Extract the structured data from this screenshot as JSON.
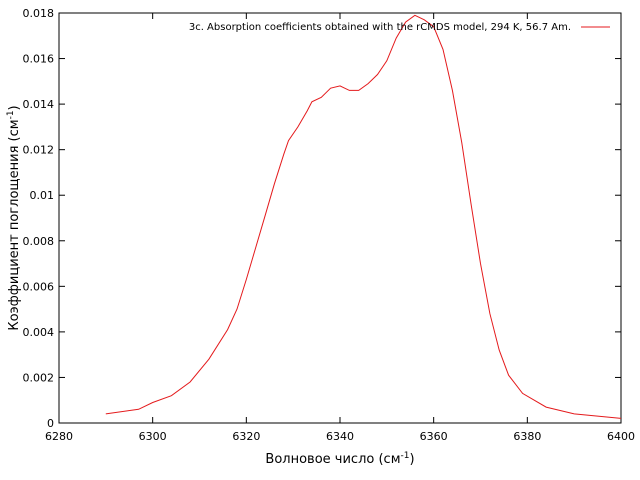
{
  "chart_data": {
    "type": "line",
    "title": "",
    "xlabel": {
      "main": "Волновое число (см",
      "sup": "-1",
      "end": ")"
    },
    "ylabel": {
      "main": "Коэффициент поглощения (см",
      "sup": "-1",
      "end": ")"
    },
    "xlim": [
      6280,
      6400
    ],
    "ylim": [
      0,
      0.018
    ],
    "x_ticks": [
      6280,
      6300,
      6320,
      6340,
      6360,
      6380,
      6400
    ],
    "x_tick_labels": [
      "6280",
      "6300",
      "6320",
      "6340",
      "6360",
      "6380",
      "6400"
    ],
    "y_ticks": [
      0,
      0.002,
      0.004,
      0.006,
      0.008,
      0.01,
      0.012,
      0.014,
      0.016,
      0.018
    ],
    "y_tick_labels": [
      "0",
      "0.002",
      "0.004",
      "0.006",
      "0.008",
      "0.01",
      "0.012",
      "0.014",
      "0.016",
      "0.018"
    ],
    "grid": false,
    "legend_position": "top-right",
    "series": [
      {
        "name": "3c. Absorption coefficients obtained with the rCMDS model, 294 K, 56.7 Am.",
        "color": "#e41a1c",
        "x": [
          6290,
          6297,
          6300,
          6304,
          6308,
          6312,
          6316,
          6318,
          6320,
          6322,
          6324,
          6326,
          6328,
          6329,
          6331,
          6333,
          6334,
          6336,
          6338,
          6340,
          6342,
          6344,
          6346,
          6348,
          6350,
          6352,
          6354,
          6356,
          6357,
          6358,
          6360,
          6362,
          6364,
          6366,
          6368,
          6370,
          6372,
          6374,
          6376,
          6379,
          6384,
          6390,
          6400
        ],
        "y": [
          0.0004,
          0.0006,
          0.0009,
          0.0012,
          0.0018,
          0.0028,
          0.0041,
          0.005,
          0.0063,
          0.0077,
          0.0091,
          0.0105,
          0.0118,
          0.0124,
          0.013,
          0.0137,
          0.0141,
          0.0143,
          0.0147,
          0.0148,
          0.0146,
          0.0146,
          0.0149,
          0.0153,
          0.0159,
          0.0169,
          0.0176,
          0.0179,
          0.0178,
          0.0177,
          0.0174,
          0.0164,
          0.0146,
          0.0123,
          0.0096,
          0.007,
          0.0048,
          0.0032,
          0.0021,
          0.0013,
          0.0007,
          0.0004,
          0.0002
        ]
      }
    ]
  }
}
